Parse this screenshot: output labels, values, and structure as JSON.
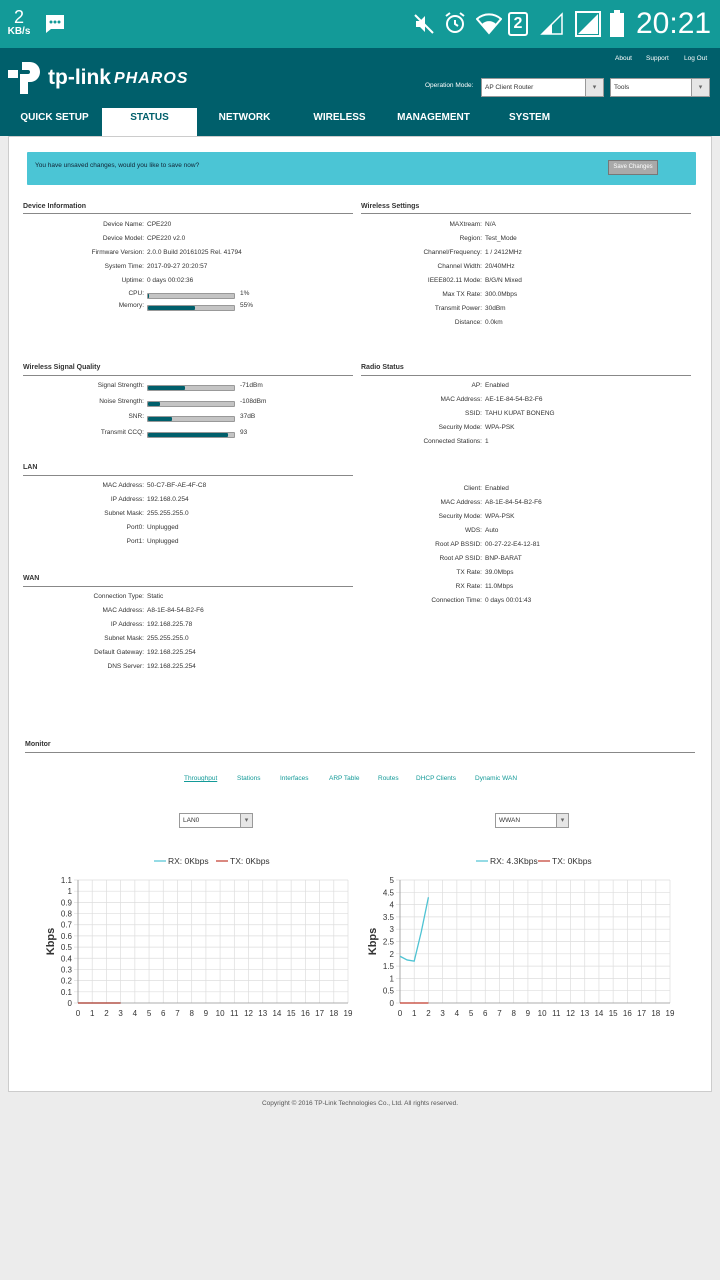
{
  "statusbar": {
    "speed_value": "2",
    "speed_unit": "KB/s",
    "sim_number": "2",
    "time": "20:21"
  },
  "header": {
    "brand": "tp-link",
    "product": "PHAROS",
    "links": {
      "about": "About",
      "support": "Support",
      "logout": "Log Out"
    },
    "op_mode_label": "Operation Mode:",
    "op_mode_value": "AP Client Router",
    "tools_value": "Tools"
  },
  "nav": {
    "tabs": [
      "QUICK SETUP",
      "STATUS",
      "NETWORK",
      "WIRELESS",
      "MANAGEMENT",
      "SYSTEM"
    ],
    "active": "STATUS"
  },
  "notice": {
    "text": "You have unsaved changes, would you like to save now?",
    "button": "Save Changes"
  },
  "device_info": {
    "title": "Device Information",
    "rows": [
      [
        "Device Name:",
        "CPE220"
      ],
      [
        "Device Model:",
        "CPE220 v2.0"
      ],
      [
        "Firmware Version:",
        "2.0.0 Build 20161025 Rel. 41794"
      ],
      [
        "System Time:",
        "2017-09-27 20:20:57"
      ],
      [
        "Uptime:",
        "0 days 00:02:36"
      ]
    ],
    "cpu": {
      "label": "CPU:",
      "value": "1%",
      "level": 0.01
    },
    "memory": {
      "label": "Memory:",
      "value": "55%",
      "level": 0.55
    }
  },
  "wireless_settings": {
    "title": "Wireless Settings",
    "rows": [
      [
        "MAXtream:",
        "N/A"
      ],
      [
        "Region:",
        "Test_Mode"
      ],
      [
        "Channel/Frequency:",
        "1 / 2412MHz"
      ],
      [
        "Channel Width:",
        "20/40MHz"
      ],
      [
        "IEEE802.11 Mode:",
        "B/G/N Mixed"
      ],
      [
        "Max TX Rate:",
        "300.0Mbps"
      ],
      [
        "Transmit Power:",
        "30dBm"
      ],
      [
        "Distance:",
        "0.0km"
      ]
    ]
  },
  "signal_quality": {
    "title": "Wireless Signal Quality",
    "rows": [
      {
        "label": "Signal Strength:",
        "value": "-71dBm",
        "level": 0.43
      },
      {
        "label": "Noise Strength:",
        "value": "-108dBm",
        "level": 0.14
      },
      {
        "label": "SNR:",
        "value": "37dB",
        "level": 0.28
      },
      {
        "label": "Transmit CCQ:",
        "value": "93",
        "level": 0.93
      }
    ]
  },
  "radio_status": {
    "title": "Radio Status",
    "ap_rows": [
      [
        "AP:",
        "Enabled"
      ],
      [
        "MAC Address:",
        "AE-1E-84-54-B2-F6"
      ],
      [
        "SSID:",
        "TAHU KUPAT BONENG"
      ],
      [
        "Security Mode:",
        "WPA-PSK"
      ],
      [
        "Connected Stations:",
        "1"
      ]
    ],
    "client_rows": [
      [
        "Client:",
        "Enabled"
      ],
      [
        "MAC Address:",
        "A8-1E-84-54-B2-F6"
      ],
      [
        "Security Mode:",
        "WPA-PSK"
      ],
      [
        "WDS:",
        "Auto"
      ],
      [
        "Root AP BSSID:",
        "00-27-22-E4-12-81"
      ],
      [
        "Root AP SSID:",
        "BNP-BARAT"
      ],
      [
        "TX Rate:",
        "39.0Mbps"
      ],
      [
        "RX Rate:",
        "11.0Mbps"
      ],
      [
        "Connection Time:",
        "0 days 00:01:43"
      ]
    ]
  },
  "lan": {
    "title": "LAN",
    "rows": [
      [
        "MAC Address:",
        "50-C7-BF-AE-4F-C8"
      ],
      [
        "IP Address:",
        "192.168.0.254"
      ],
      [
        "Subnet Mask:",
        "255.255.255.0"
      ],
      [
        "Port0:",
        "Unplugged"
      ],
      [
        "Port1:",
        "Unplugged"
      ]
    ]
  },
  "wan": {
    "title": "WAN",
    "rows": [
      [
        "Connection Type:",
        "Static"
      ],
      [
        "MAC Address:",
        "A8-1E-84-54-B2-F6"
      ],
      [
        "IP Address:",
        "192.168.225.78"
      ],
      [
        "Subnet Mask:",
        "255.255.255.0"
      ],
      [
        "Default Gateway:",
        "192.168.225.254"
      ],
      [
        "DNS Server:",
        "192.168.225.254"
      ]
    ]
  },
  "monitor": {
    "title": "Monitor",
    "tabs": [
      "Throughput",
      "Stations",
      "Interfaces",
      "ARP Table",
      "Routes",
      "DHCP Clients",
      "Dynamic WAN"
    ],
    "active_tab": "Throughput",
    "left_select": "LAN0",
    "right_select": "WWAN"
  },
  "footer": {
    "copyright": "Copyright © 2016 TP-Link Technologies Co., Ltd. All rights reserved."
  },
  "colors": {
    "teal": "#005f6b",
    "rx": "#4ec3d3",
    "tx": "#c0392b",
    "notice": "#4bc5d5"
  },
  "chart_data": [
    {
      "type": "line",
      "ylabel": "Kbps",
      "legend": [
        "RX: 0Kbps",
        "TX: 0Kbps"
      ],
      "x": [
        0,
        1,
        2,
        3,
        4,
        5,
        6,
        7,
        8,
        9,
        10,
        11,
        12,
        13,
        14,
        15,
        16,
        17,
        18,
        19
      ],
      "yticks": [
        "0",
        "0.1",
        "0.2",
        "0.3",
        "0.4",
        "0.5",
        "0.6",
        "0.7",
        "0.8",
        "0.9",
        "1",
        "1.1"
      ],
      "ylim": [
        0,
        1.1
      ],
      "series": [
        {
          "name": "RX: 0Kbps",
          "x": [
            0,
            1,
            2,
            3
          ],
          "values": [
            0,
            0,
            0,
            0
          ]
        },
        {
          "name": "TX: 0Kbps",
          "x": [
            0,
            1,
            2,
            3
          ],
          "values": [
            0,
            0,
            0,
            0
          ]
        }
      ]
    },
    {
      "type": "line",
      "ylabel": "Kbps",
      "legend": [
        "RX: 4.3Kbps",
        "TX: 0Kbps"
      ],
      "x": [
        0,
        1,
        2,
        3,
        4,
        5,
        6,
        7,
        8,
        9,
        10,
        11,
        12,
        13,
        14,
        15,
        16,
        17,
        18,
        19
      ],
      "yticks": [
        "0",
        "0.5",
        "1",
        "1.5",
        "2",
        "2.5",
        "3",
        "3.5",
        "4",
        "4.5",
        "5"
      ],
      "ylim": [
        0,
        5
      ],
      "series": [
        {
          "name": "RX: 4.3Kbps",
          "x": [
            0,
            0.5,
            1,
            1.5,
            2
          ],
          "values": [
            1.9,
            1.75,
            1.7,
            2.9,
            4.3
          ]
        },
        {
          "name": "TX: 0Kbps",
          "x": [
            0,
            1,
            2
          ],
          "values": [
            0,
            0,
            0
          ]
        }
      ]
    }
  ]
}
